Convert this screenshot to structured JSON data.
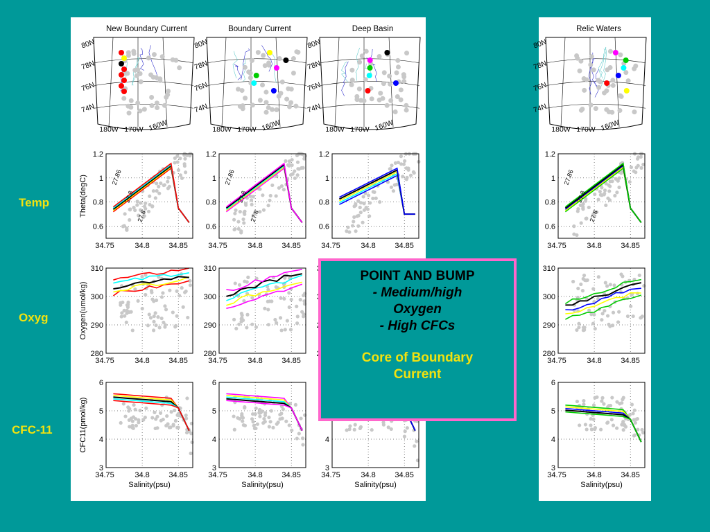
{
  "row_labels": {
    "temp": "Temp",
    "oxyg": "Oxyg",
    "cfc": "CFC-11"
  },
  "callout": {
    "title": "POINT AND BUMP",
    "line1": "- Medium/high",
    "line2": "Oxygen",
    "line3": "- High CFCs",
    "line4": "Core of Boundary",
    "line5": "Current",
    "border_color": "#ff66cc",
    "accent_color": "#f2e20f"
  },
  "columns": [
    {
      "id": "nbc",
      "title": "New Boundary Current"
    },
    {
      "id": "bc",
      "title": "Boundary Current"
    },
    {
      "id": "db",
      "title": "Deep Basin"
    },
    {
      "id": "relic",
      "title": "Relic Waters"
    }
  ],
  "map": {
    "lat_labels": [
      "80N",
      "78N",
      "76N",
      "74N"
    ],
    "lon_labels": [
      "180W",
      "170W",
      "160W"
    ]
  },
  "chart_data": [
    {
      "type": "line",
      "variable": "temp",
      "ylabel": "Theta(degC)",
      "xlim": [
        34.75,
        34.87
      ],
      "ylim": [
        0.5,
        1.2
      ],
      "x_ticks": [
        "34.75",
        "34.8",
        "34.85"
      ],
      "y_ticks": [
        "0.6",
        "0.8",
        "1",
        "1.2"
      ],
      "isopycnal_labels": [
        "27.86",
        "27.8",
        "27.8"
      ],
      "grid": true
    },
    {
      "type": "line",
      "variable": "oxygen",
      "ylabel": "Oxygen(umol/kg)",
      "xlim": [
        34.75,
        34.87
      ],
      "ylim": [
        280,
        310
      ],
      "x_ticks": [
        "34.75",
        "34.8",
        "34.85"
      ],
      "y_ticks": [
        "280",
        "290",
        "300",
        "310"
      ],
      "grid": true
    },
    {
      "type": "line",
      "variable": "cfc11",
      "ylabel": "CFC11(pmol/kg)",
      "xlabel": "Salinity(psu)",
      "xlim": [
        34.75,
        34.87
      ],
      "ylim": [
        3,
        6
      ],
      "x_ticks": [
        "34.75",
        "34.8",
        "34.85"
      ],
      "y_ticks": [
        "3",
        "4",
        "5",
        "6"
      ],
      "grid": true
    }
  ],
  "station_colors": [
    "#ff0000",
    "#ffff00",
    "#000000",
    "#ff00ff",
    "#00cc00",
    "#00ffff",
    "#0000ff"
  ],
  "background_color": "#c8c8c8"
}
